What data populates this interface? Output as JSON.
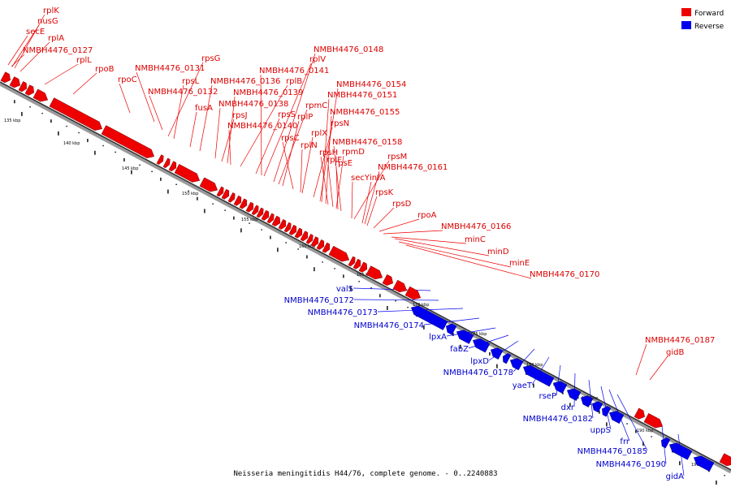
{
  "legend": {
    "forward": {
      "label": "Forward",
      "color": "#ee0000"
    },
    "reverse": {
      "label": "Reverse",
      "color": "#0000ee"
    }
  },
  "caption": "Neisseria meningitidis H44/76, complete genome. - 0..2240883",
  "tick_labels": [
    "135 kbp",
    "140 kbp",
    "145 kbp",
    "150 kbp",
    "155 kbp",
    "160 kbp",
    "165 kbp",
    "170 kbp",
    "175 kbp",
    "180 kbp",
    "185 kbp",
    "190 kbp",
    "195 kbp"
  ],
  "forward_labels": [
    "rplK",
    "nusG",
    "secE",
    "rplA",
    "NMBH4476_0127",
    "rplL",
    "rpoB",
    "rpoC",
    "NMBH4476_0131",
    "rpsG",
    "rpsL",
    "NMBH4476_0132",
    "fusA",
    "NMBH4476_0136",
    "rplB",
    "NMBH4476_0138",
    "NMBH4476_0139",
    "rpsJ",
    "NMBH4476_0140",
    "rpsS",
    "rplV",
    "NMBH4476_0141",
    "NMBH4476_0148",
    "rpmC",
    "rplP",
    "rpsC",
    "rplN",
    "rplX",
    "rpsN",
    "NMBH4476_0154",
    "NMBH4476_0151",
    "NMBH4476_0155",
    "rpsH",
    "rplF",
    "rpmD",
    "rpsE",
    "NMBH4476_0158",
    "rpsM",
    "secY",
    "infA",
    "NMBH4476_0161",
    "rpsK",
    "rpsD",
    "rpoA",
    "NMBH4476_0166",
    "minC",
    "minD",
    "minE",
    "NMBH4476_0170",
    "NMBH4476_0187",
    "gidB"
  ],
  "reverse_labels": [
    "valS",
    "NMBH4476_0172",
    "NMBH4476_0173",
    "NMBH4476_0174",
    "lpxA",
    "fabZ",
    "lpxD",
    "NMBH4476_0178",
    "yaeT",
    "rseP",
    "dxr",
    "NMBH4476_0182",
    "uppS",
    "frr",
    "NMBH4476_0185",
    "NMBH4476_0190",
    "gidA"
  ]
}
